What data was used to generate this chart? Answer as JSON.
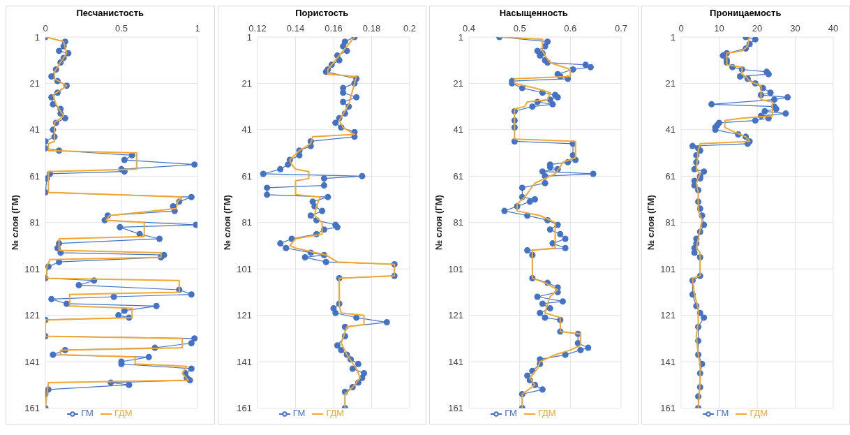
{
  "chart_data": [
    {
      "type": "line",
      "xlabel": "Песчанистость",
      "ylabel": "№ слоя (ГМ)",
      "xlim": [
        0,
        1
      ],
      "xticks": [
        0,
        0.5,
        1
      ],
      "ylim": [
        161,
        1
      ],
      "yticks": [
        1,
        21,
        41,
        61,
        81,
        101,
        121,
        141,
        161
      ],
      "grid": true,
      "legend": "bottom",
      "series": [
        {
          "name": "ГМ",
          "color": "#4472c4",
          "marker": "circle",
          "x": [
            0,
            0.13,
            0.12,
            0.09,
            0.15,
            0.12,
            0.1,
            0.07,
            0.04,
            0.08,
            0.14,
            0.08,
            0.04,
            0.05,
            0.1,
            0.1,
            0.13,
            0.07,
            0.05,
            0.06,
            0,
            0,
            0.09,
            0.57,
            0.52,
            0.98,
            0.5,
            0.52,
            0.03,
            0.01,
            0,
            0.96,
            0.88,
            0.84,
            0.85,
            0.41,
            0.39,
            0.99,
            0.49,
            0.62,
            0.75,
            0.09,
            0.08,
            0.1,
            0.78,
            0.76,
            0.09,
            0.02,
            0,
            0.32,
            0.22,
            0.88,
            0.96,
            0.45,
            0.04,
            0.14,
            0.73,
            0.52,
            0.48,
            0.55,
            0,
            0,
            0.98,
            0.96,
            0.72,
            0.13,
            0.05,
            0.68,
            0.5,
            0.5,
            0.96,
            0.92,
            0.93,
            0.95,
            0.43,
            0.55,
            0.02,
            0,
            0
          ],
          "values": [
            1,
            3,
            5,
            7,
            8,
            10,
            12,
            15,
            18,
            20,
            22,
            25,
            27,
            30,
            32,
            34,
            36,
            38,
            41,
            44,
            46,
            49,
            50,
            52,
            54,
            56,
            58,
            59,
            60,
            62,
            68,
            70,
            72,
            74,
            76,
            78,
            80,
            82,
            83,
            86,
            88,
            90,
            92,
            94,
            95,
            96,
            98,
            100,
            105,
            106,
            108,
            110,
            112,
            113,
            114,
            116,
            117,
            119,
            121,
            122,
            123,
            130,
            131,
            133,
            135,
            136,
            138,
            139,
            141,
            142,
            144,
            146,
            148,
            149,
            150,
            151,
            153,
            155,
            161
          ]
        },
        {
          "name": "ГДМ",
          "color": "#f0a830",
          "marker": "none",
          "x": [
            0,
            0.12,
            0.14,
            0.1,
            0.06,
            0.06,
            0.14,
            0.05,
            0.07,
            0.12,
            0.06,
            0.06,
            0.06,
            0.02,
            0.02,
            0.6,
            0.6,
            0.02,
            0.02,
            0.9,
            0.87,
            0.86,
            0.42,
            0.4,
            0.65,
            0.65,
            0.09,
            0.09,
            0.76,
            0.76,
            0.03,
            0.01,
            0.01,
            0.88,
            0.88,
            0.16,
            0.16,
            0.57,
            0.57,
            0,
            0,
            0.9,
            0.9,
            0.1,
            0.1,
            0.59,
            0.59,
            0.93,
            0.9,
            0.94,
            0.02,
            0
          ],
          "values": [
            1,
            3,
            8,
            12,
            16,
            19,
            22,
            26,
            30,
            35,
            38,
            41,
            46,
            47,
            50,
            51,
            58,
            59,
            68,
            70,
            72,
            75,
            78,
            80,
            81,
            87,
            88,
            93,
            94,
            96,
            97,
            100,
            105,
            106,
            111,
            112,
            117,
            118,
            122,
            123,
            130,
            131,
            135,
            136,
            138,
            139,
            142,
            143,
            146,
            149,
            150,
            161
          ]
        }
      ]
    },
    {
      "type": "line",
      "xlabel": "Пористость",
      "ylabel": "№ слоя (ГМ)",
      "xlim": [
        0.12,
        0.2
      ],
      "xticks": [
        0.12,
        0.14,
        0.16,
        0.18,
        0.2
      ],
      "ylim": [
        161,
        1
      ],
      "yticks": [
        1,
        21,
        41,
        61,
        81,
        101,
        121,
        141,
        161
      ],
      "grid": true,
      "legend": "bottom",
      "series": [
        {
          "name": "ГМ",
          "color": "#4472c4",
          "marker": "circle",
          "x": [
            0.171,
            0.166,
            0.165,
            0.167,
            0.162,
            0.163,
            0.159,
            0.157,
            0.156,
            0.172,
            0.171,
            0.165,
            0.165,
            0.172,
            0.165,
            0.168,
            0.166,
            0.163,
            0.161,
            0.164,
            0.171,
            0.171,
            0.148,
            0.148,
            0.142,
            0.142,
            0.137,
            0.136,
            0.132,
            0.123,
            0.175,
            0.155,
            0.155,
            0.125,
            0.125,
            0.157,
            0.149,
            0.15,
            0.154,
            0.148,
            0.151,
            0.161,
            0.162,
            0.155,
            0.151,
            0.138,
            0.132,
            0.135,
            0.148,
            0.155,
            0.145,
            0.156,
            0.192,
            0.192,
            0.163,
            0.163,
            0.16,
            0.161,
            0.172,
            0.188,
            0.166,
            0.166,
            0.162,
            0.164,
            0.167,
            0.169,
            0.173,
            0.17,
            0.176,
            0.175,
            0.173,
            0.17,
            0.166,
            0.166
          ],
          "values": [
            1,
            3,
            5,
            7,
            9,
            11,
            13,
            15,
            16,
            19,
            21,
            23,
            25,
            27,
            29,
            31,
            34,
            36,
            38,
            40,
            42,
            44,
            46,
            48,
            50,
            52,
            54,
            56,
            58,
            60,
            61,
            62,
            65,
            66,
            69,
            70,
            72,
            74,
            76,
            78,
            80,
            82,
            83,
            84,
            86,
            88,
            90,
            92,
            94,
            95,
            96,
            98,
            99,
            104,
            105,
            116,
            118,
            120,
            122,
            124,
            126,
            130,
            134,
            136,
            138,
            140,
            142,
            144,
            146,
            148,
            150,
            152,
            154,
            161
          ]
        },
        {
          "name": "ГДМ",
          "color": "#f0a830",
          "marker": "none",
          "x": [
            0.171,
            0.164,
            0.157,
            0.157,
            0.172,
            0.171,
            0.168,
            0.163,
            0.165,
            0.171,
            0.149,
            0.148,
            0.142,
            0.137,
            0.138,
            0.14,
            0.147,
            0.147,
            0.14,
            0.14,
            0.153,
            0.151,
            0.15,
            0.154,
            0.154,
            0.14,
            0.137,
            0.14,
            0.156,
            0.162,
            0.192,
            0.192,
            0.163,
            0.163,
            0.164,
            0.176,
            0.176,
            0.167,
            0.164,
            0.167,
            0.172,
            0.174,
            0.17,
            0.166,
            0.166
          ],
          "values": [
            1,
            8,
            15,
            17,
            18,
            21,
            30,
            37,
            40,
            43,
            44,
            47,
            50,
            54,
            56,
            58,
            59,
            62,
            63,
            69,
            70,
            74,
            78,
            81,
            86,
            88,
            91,
            92,
            95,
            98,
            99,
            104,
            105,
            117,
            120,
            121,
            125,
            126,
            133,
            138,
            144,
            148,
            152,
            155,
            161
          ]
        }
      ]
    },
    {
      "type": "line",
      "xlabel": "Насыщенность",
      "ylabel": "№ слоя (ГМ)",
      "xlim": [
        0.4,
        0.7
      ],
      "xticks": [
        0.4,
        0.5,
        0.6,
        0.7
      ],
      "ylim": [
        161,
        1
      ],
      "yticks": [
        1,
        21,
        41,
        61,
        81,
        101,
        121,
        141,
        161
      ],
      "grid": true,
      "legend": "bottom",
      "series": [
        {
          "name": "ГМ",
          "color": "#4472c4",
          "marker": "circle",
          "x": [
            0.46,
            0.555,
            0.55,
            0.535,
            0.545,
            0.54,
            0.55,
            0.555,
            0.63,
            0.64,
            0.605,
            0.575,
            0.58,
            0.595,
            0.485,
            0.485,
            0.505,
            0.545,
            0.57,
            0.575,
            0.56,
            0.535,
            0.565,
            0.525,
            0.49,
            0.49,
            0.49,
            0.49,
            0.605,
            0.605,
            0.61,
            0.595,
            0.56,
            0.56,
            0.575,
            0.545,
            0.645,
            0.55,
            0.55,
            0.505,
            0.505,
            0.53,
            0.52,
            0.495,
            0.47,
            0.515,
            0.555,
            0.575,
            0.56,
            0.58,
            0.59,
            0.565,
            0.59,
            0.515,
            0.525,
            0.525,
            0.555,
            0.575,
            0.575,
            0.535,
            0.585,
            0.545,
            0.56,
            0.54,
            0.55,
            0.58,
            0.58,
            0.615,
            0.615,
            0.635,
            0.62,
            0.59,
            0.54,
            0.54,
            0.525,
            0.515,
            0.52,
            0.53,
            0.545,
            0.505,
            0.505
          ],
          "values": [
            1,
            3,
            5,
            7,
            8,
            9,
            11,
            12,
            13,
            14,
            15,
            17,
            18,
            19,
            20,
            21,
            23,
            25,
            26,
            27,
            28,
            29,
            30,
            31,
            33,
            37,
            40,
            46,
            47,
            52,
            54,
            55,
            56,
            57,
            58,
            59,
            60,
            61,
            64,
            66,
            70,
            71,
            72,
            74,
            76,
            78,
            80,
            82,
            84,
            86,
            88,
            90,
            92,
            93,
            95,
            105,
            107,
            109,
            111,
            113,
            115,
            116,
            118,
            120,
            122,
            123,
            128,
            129,
            133,
            135,
            136,
            138,
            140,
            142,
            145,
            147,
            149,
            151,
            153,
            155,
            161
          ]
        },
        {
          "name": "ГДМ",
          "color": "#f0a830",
          "marker": "none",
          "x": [
            0.46,
            0.545,
            0.545,
            0.55,
            0.56,
            0.6,
            0.6,
            0.49,
            0.49,
            0.53,
            0.56,
            0.555,
            0.515,
            0.51,
            0.49,
            0.49,
            0.61,
            0.61,
            0.585,
            0.58,
            0.57,
            0.55,
            0.53,
            0.52,
            0.51,
            0.495,
            0.495,
            0.54,
            0.57,
            0.57,
            0.525,
            0.525,
            0.55,
            0.575,
            0.56,
            0.555,
            0.55,
            0.58,
            0.58,
            0.62,
            0.62,
            0.6,
            0.57,
            0.54,
            0.535,
            0.52,
            0.53,
            0.505,
            0.505
          ],
          "values": [
            1,
            2,
            7,
            9,
            12,
            15,
            18,
            19,
            21,
            23,
            25,
            28,
            29,
            31,
            32,
            45,
            46,
            53,
            55,
            57,
            60,
            62,
            64,
            67,
            70,
            73,
            76,
            78,
            81,
            92,
            93,
            105,
            107,
            110,
            113,
            116,
            120,
            122,
            128,
            129,
            134,
            136,
            138,
            141,
            144,
            148,
            151,
            155,
            161
          ]
        }
      ]
    },
    {
      "type": "line",
      "xlabel": "Проницаемость",
      "ylabel": "№ слоя (ГМ)",
      "xlim": [
        0,
        40
      ],
      "xticks": [
        0,
        10,
        20,
        30,
        40
      ],
      "ylim": [
        161,
        1
      ],
      "yticks": [
        1,
        21,
        41,
        61,
        81,
        101,
        121,
        141,
        161
      ],
      "grid": true,
      "legend": "bottom",
      "series": [
        {
          "name": "ГМ",
          "color": "#4472c4",
          "marker": "circle",
          "x": [
            17,
            19.5,
            18,
            17,
            12,
            11,
            12,
            12,
            13.5,
            16,
            22.5,
            23,
            15.5,
            17.5,
            19.5,
            21.5,
            23.5,
            21,
            28,
            24.5,
            8,
            24.5,
            25,
            22,
            27.5,
            21,
            23,
            19.5,
            10,
            9.5,
            9,
            9,
            15,
            17,
            18,
            17.5,
            3,
            4.5,
            5,
            4,
            4,
            3.5,
            6,
            5,
            5,
            3.5,
            3.5,
            4.5,
            4.5,
            5,
            5.5,
            6,
            5,
            4,
            4,
            3.5,
            3.5,
            5,
            5,
            3,
            3,
            4,
            5,
            6,
            4.5,
            4.5,
            4.5,
            5.5,
            5,
            5,
            4.5,
            4.5
          ],
          "values": [
            1,
            2,
            4,
            6,
            8,
            9,
            11,
            12,
            14,
            15,
            16,
            17,
            18,
            19,
            21,
            23,
            25,
            26,
            27,
            28,
            30,
            31,
            32,
            33,
            34,
            35,
            36,
            37,
            38,
            39,
            40,
            41,
            43,
            44,
            46,
            47,
            48,
            49,
            50,
            52,
            55,
            58,
            59,
            61,
            62,
            63,
            65,
            67,
            72,
            75,
            78,
            82,
            85,
            88,
            90,
            92,
            94,
            96,
            104,
            106,
            112,
            117,
            120,
            122,
            126,
            132,
            138,
            142,
            146,
            152,
            156,
            161
          ]
        },
        {
          "name": "ГДМ",
          "color": "#f0a830",
          "marker": "none",
          "x": [
            18,
            17.5,
            16,
            12,
            12,
            16,
            16,
            17,
            18,
            21,
            21,
            24,
            24,
            16,
            11.5,
            11.5,
            14,
            17,
            18,
            5,
            4.5,
            4,
            5,
            4,
            4.5,
            4.5,
            5.5,
            5,
            4.5,
            4,
            5,
            5,
            3,
            3.5,
            4.5,
            4.5,
            4,
            4.5,
            5,
            5,
            4.5
          ],
          "values": [
            1,
            5,
            7,
            8,
            13,
            14,
            17,
            18,
            20,
            22,
            28,
            29,
            35,
            36,
            37,
            40,
            42,
            44,
            46,
            47,
            50,
            58,
            60,
            64,
            68,
            76,
            80,
            84,
            88,
            92,
            94,
            104,
            105,
            112,
            118,
            124,
            130,
            138,
            142,
            150,
            161
          ]
        }
      ]
    }
  ]
}
